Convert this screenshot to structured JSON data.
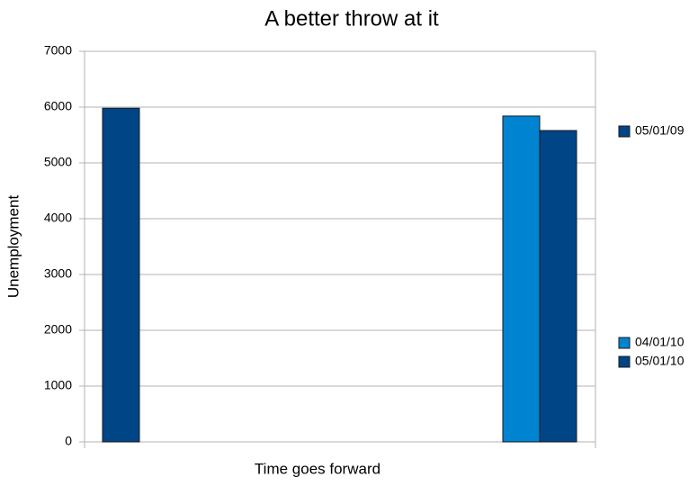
{
  "chart_data": {
    "type": "bar",
    "title": "A better throw at it",
    "x_label": "Time goes forward",
    "y_label": "Unemployment",
    "series": [
      {
        "name": "05/01/09",
        "color": "#004586",
        "values": [
          5980
        ]
      },
      {
        "name": "04/01/10",
        "color": "#0084d1",
        "values": [
          5840
        ]
      },
      {
        "name": "05/01/10",
        "color": "#004586",
        "values": [
          5580
        ]
      }
    ],
    "ylim": [
      0,
      7000
    ],
    "yticks": [
      0,
      1000,
      2000,
      3000,
      4000,
      5000,
      6000,
      7000
    ],
    "grid": true
  }
}
